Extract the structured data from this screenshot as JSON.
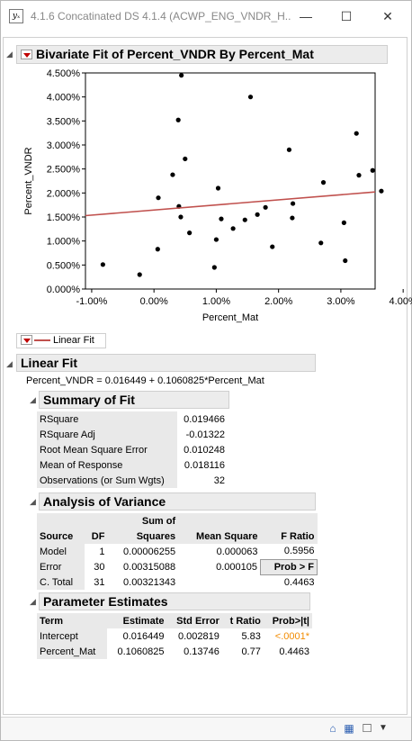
{
  "window": {
    "title": "4.1.6  Concatinated DS 4.1.4 (ACWP_ENG_VNDR_H...",
    "icon_glyph": "yₓ",
    "minimize_glyph": "—",
    "maximize_glyph": "☐",
    "close_glyph": "✕"
  },
  "bivariate": {
    "title": "Bivariate Fit of Percent_VNDR By Percent_Mat"
  },
  "chart_data": {
    "type": "scatter",
    "xlabel": "Percent_Mat",
    "ylabel": "Percent_VNDR",
    "xlim": [
      -0.011,
      0.0355
    ],
    "ylim": [
      0.0,
      0.045
    ],
    "xticks": [
      -0.01,
      0.0,
      0.01,
      0.02,
      0.03,
      0.04
    ],
    "xtick_labels": [
      "-1.00%",
      "0.00%",
      "1.00%",
      "2.00%",
      "3.00%",
      "4.00%"
    ],
    "yticks": [
      0.0,
      0.005,
      0.01,
      0.015,
      0.02,
      0.025,
      0.03,
      0.035,
      0.04,
      0.045
    ],
    "ytick_labels": [
      "0.000%",
      "0.500%",
      "1.000%",
      "1.500%",
      "2.000%",
      "2.500%",
      "3.000%",
      "3.500%",
      "4.000%",
      "4.500%"
    ],
    "grid": false,
    "points": [
      {
        "x": -0.0082,
        "y": 0.0051
      },
      {
        "x": -0.0023,
        "y": 0.003
      },
      {
        "x": 0.0006,
        "y": 0.0083
      },
      {
        "x": 0.0007,
        "y": 0.019
      },
      {
        "x": 0.003,
        "y": 0.0238
      },
      {
        "x": 0.004,
        "y": 0.0172
      },
      {
        "x": 0.0039,
        "y": 0.0352
      },
      {
        "x": 0.0043,
        "y": 0.015
      },
      {
        "x": 0.0044,
        "y": 0.0445
      },
      {
        "x": 0.005,
        "y": 0.0271
      },
      {
        "x": 0.0057,
        "y": 0.0117
      },
      {
        "x": 0.0097,
        "y": 0.0045
      },
      {
        "x": 0.01,
        "y": 0.0103
      },
      {
        "x": 0.0103,
        "y": 0.021
      },
      {
        "x": 0.0108,
        "y": 0.0146
      },
      {
        "x": 0.0127,
        "y": 0.0126
      },
      {
        "x": 0.0146,
        "y": 0.0144
      },
      {
        "x": 0.0155,
        "y": 0.04
      },
      {
        "x": 0.0166,
        "y": 0.0155
      },
      {
        "x": 0.0179,
        "y": 0.017
      },
      {
        "x": 0.019,
        "y": 0.0088
      },
      {
        "x": 0.0217,
        "y": 0.029
      },
      {
        "x": 0.0223,
        "y": 0.0178
      },
      {
        "x": 0.0222,
        "y": 0.0148
      },
      {
        "x": 0.0268,
        "y": 0.0096
      },
      {
        "x": 0.0272,
        "y": 0.0222
      },
      {
        "x": 0.0305,
        "y": 0.0138
      },
      {
        "x": 0.0307,
        "y": 0.0059
      },
      {
        "x": 0.0325,
        "y": 0.0324
      },
      {
        "x": 0.0329,
        "y": 0.0237
      },
      {
        "x": 0.0351,
        "y": 0.0247
      },
      {
        "x": 0.0365,
        "y": 0.0204
      }
    ],
    "fit_line": {
      "intercept": 0.016449,
      "slope": 0.1060825,
      "color": "#c0504d"
    }
  },
  "legend": {
    "label": "Linear Fit"
  },
  "linear_fit": {
    "title": "Linear Fit",
    "equation": "Percent_VNDR = 0.016449 + 0.1060825*Percent_Mat"
  },
  "summary": {
    "title": "Summary of Fit",
    "rows": [
      {
        "label": "RSquare",
        "value": "0.019466"
      },
      {
        "label": "RSquare Adj",
        "value": "-0.01322"
      },
      {
        "label": "Root Mean Square Error",
        "value": "0.010248"
      },
      {
        "label": "Mean of Response",
        "value": "0.018116"
      },
      {
        "label": "Observations (or Sum Wgts)",
        "value": "32"
      }
    ]
  },
  "anova": {
    "title": "Analysis of Variance",
    "headers": {
      "source": "Source",
      "df": "DF",
      "ss_top": "Sum of",
      "ss_bottom": "Squares",
      "ms": "Mean Square",
      "f": "F Ratio"
    },
    "rows": [
      {
        "source": "Model",
        "df": "1",
        "ss": "0.00006255",
        "ms": "0.000063",
        "f": "0.5956"
      },
      {
        "source": "Error",
        "df": "30",
        "ss": "0.00315088",
        "ms": "0.000105",
        "f": "Prob > F"
      },
      {
        "source": "C. Total",
        "df": "31",
        "ss": "0.00321343",
        "ms": "",
        "f": "0.4463"
      }
    ]
  },
  "params": {
    "title": "Parameter Estimates",
    "headers": {
      "term": "Term",
      "est": "Estimate",
      "se": "Std Error",
      "t": "t Ratio",
      "p": "Prob>|t|"
    },
    "rows": [
      {
        "term": "Intercept",
        "est": "0.016449",
        "se": "0.002819",
        "t": "5.83",
        "p": "<.0001*"
      },
      {
        "term": "Percent_Mat",
        "est": "0.1060825",
        "se": "0.13746",
        "t": "0.77",
        "p": "0.4463"
      }
    ]
  },
  "statusbar": {
    "home_glyph": "⌂",
    "box_glyph": "□",
    "dropdown_glyph": "▼"
  },
  "colors": {
    "fit_line": "#c0504d",
    "disclosure_red": "#c00000",
    "significant": "#f28b00"
  }
}
